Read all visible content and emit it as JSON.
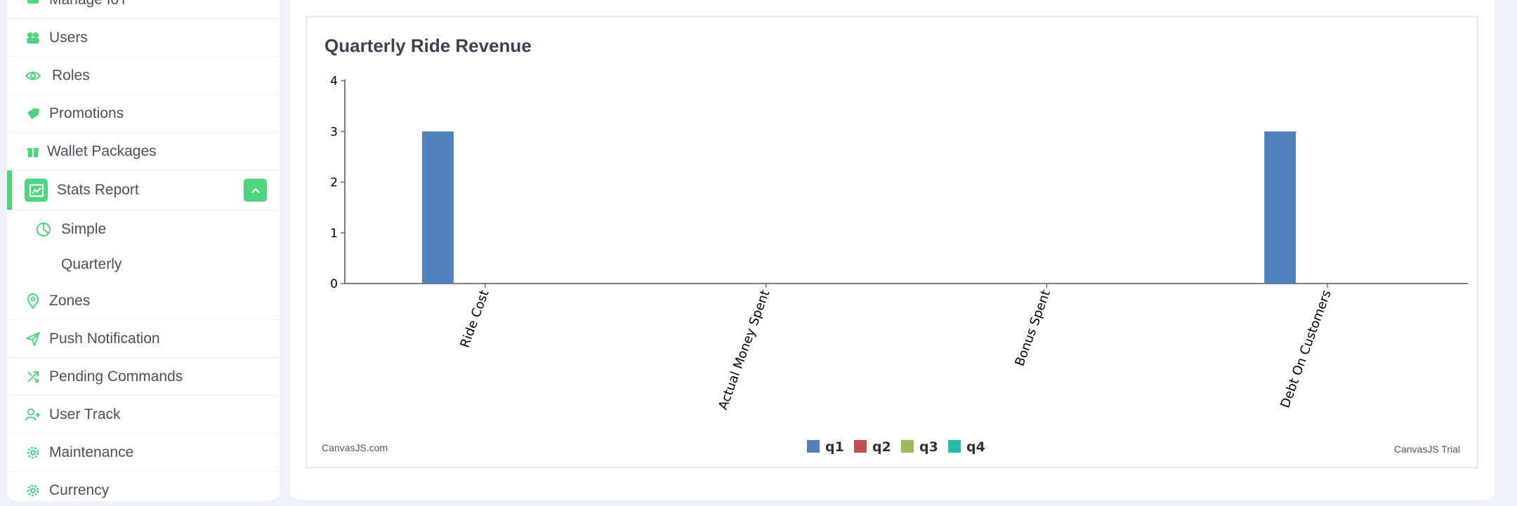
{
  "sidebar": {
    "items": [
      {
        "label": "Manage IoT",
        "icon": "device-icon"
      },
      {
        "label": "Users",
        "icon": "users-icon"
      },
      {
        "label": "Roles",
        "icon": "eye-icon"
      },
      {
        "label": "Promotions",
        "icon": "tag-icon"
      },
      {
        "label": "Wallet Packages",
        "icon": "gift-icon"
      },
      {
        "label": "Stats Report",
        "icon": "chart-icon",
        "active": true
      },
      {
        "label": "Zones",
        "icon": "location-pin-icon"
      },
      {
        "label": "Push Notification",
        "icon": "paper-plane-icon"
      },
      {
        "label": "Pending Commands",
        "icon": "arrows-icon"
      },
      {
        "label": "User Track",
        "icon": "user-plus-icon"
      },
      {
        "label": "Maintenance",
        "icon": "gear-icon"
      },
      {
        "label": "Currency",
        "icon": "gear-icon"
      }
    ],
    "subitems": [
      {
        "label": "Simple",
        "icon": "pie-chart-icon"
      },
      {
        "label": "Quarterly"
      }
    ]
  },
  "colors": {
    "accent": "#4fd47f",
    "q1": "#4f81bc",
    "q2": "#c0504e",
    "q3": "#9bbb58",
    "q4": "#23bfaa"
  },
  "chart_data": {
    "type": "bar",
    "title": "Quarterly Ride Revenue",
    "categories": [
      "Ride Cost",
      "Actual Money Spent",
      "Bonus Spent",
      "Debt On Customers"
    ],
    "series": [
      {
        "name": "q1",
        "values": [
          3,
          0,
          0,
          3
        ]
      },
      {
        "name": "q2",
        "values": [
          0,
          0,
          0,
          0
        ]
      },
      {
        "name": "q3",
        "values": [
          0,
          0,
          0,
          0
        ]
      },
      {
        "name": "q4",
        "values": [
          0,
          0,
          0,
          0
        ]
      }
    ],
    "yticks": [
      0,
      1,
      2,
      3,
      4
    ],
    "ylim": [
      0,
      4
    ],
    "legend": "bottom-center",
    "credit_left": "CanvasJS.com",
    "credit_right": "CanvasJS Trial"
  }
}
